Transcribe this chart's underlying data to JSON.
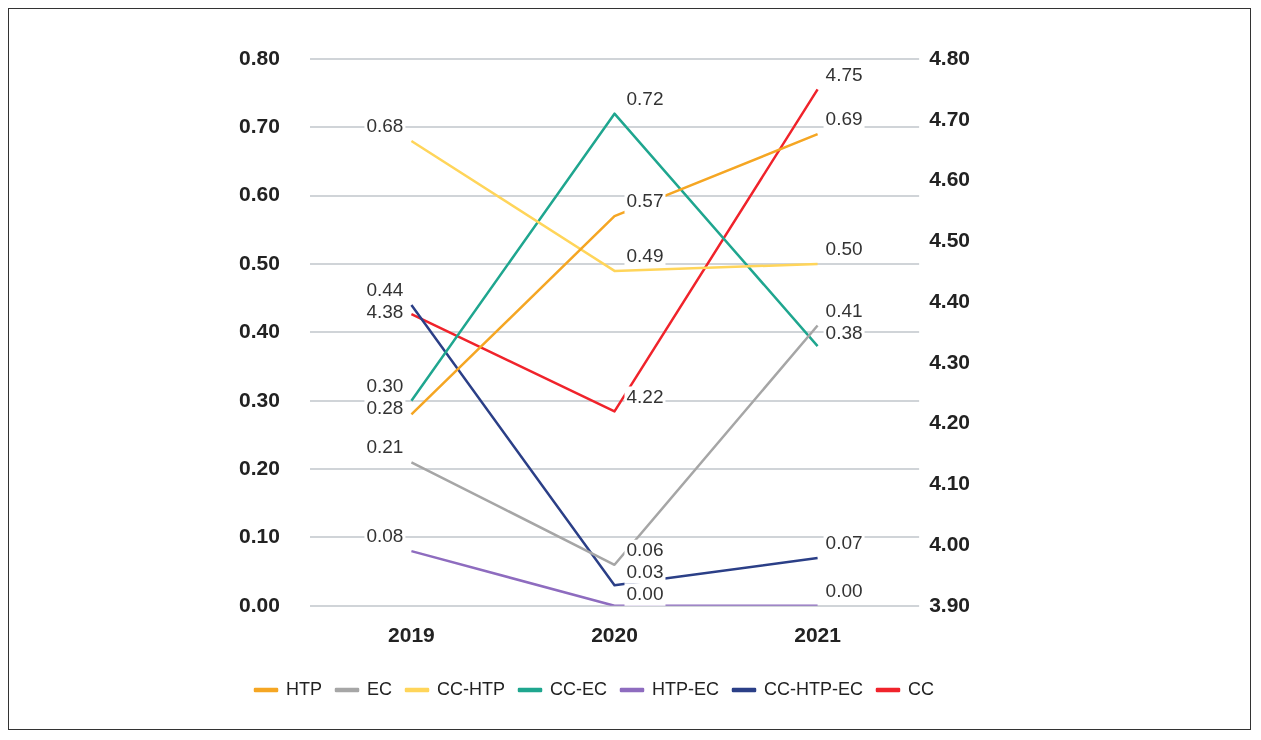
{
  "chart_data": {
    "type": "line",
    "categories": [
      "2019",
      "2020",
      "2021"
    ],
    "series": [
      {
        "name": "HTP",
        "color": "#f5a623",
        "values": [
          0.28,
          0.57,
          0.69
        ],
        "value_labels": [
          "0.28",
          "0.57",
          "0.69"
        ]
      },
      {
        "name": "EC",
        "color": "#a6a6a6",
        "values": [
          0.21,
          0.06,
          0.41
        ],
        "value_labels": [
          "0.21",
          "0.06",
          "0.41"
        ]
      },
      {
        "name": "CC-HTP",
        "color": "#ffd55a",
        "values": [
          0.68,
          0.49,
          0.5
        ],
        "value_labels": [
          "0.68",
          "0.49",
          "0.50"
        ]
      },
      {
        "name": "CC-EC",
        "color": "#1fa68f",
        "values": [
          0.3,
          0.72,
          0.38
        ],
        "value_labels": [
          "0.30",
          "0.72",
          "0.38"
        ]
      },
      {
        "name": "HTP-EC",
        "color": "#8e6cbf",
        "values": [
          0.08,
          0.0,
          0.0
        ],
        "value_labels": [
          "0.08",
          "0.00",
          "0.00"
        ]
      },
      {
        "name": "CC-HTP-EC",
        "color": "#2b3f87",
        "values": [
          0.44,
          0.03,
          0.07
        ],
        "value_labels": [
          "0.44",
          "0.03",
          "0.07"
        ]
      },
      {
        "name": "CC",
        "color": "#f0232b",
        "axis": "y2",
        "values": [
          4.38,
          4.22,
          4.75
        ],
        "value_labels": [
          "4.38",
          "4.22",
          "4.75"
        ]
      }
    ],
    "ylim": [
      0,
      0.8
    ],
    "yticks": [
      {
        "value": 0,
        "label": "0.00"
      },
      {
        "value": 0.1,
        "label": "0.10"
      },
      {
        "value": 0.2,
        "label": "0.20"
      },
      {
        "value": 0.3,
        "label": "0.30"
      },
      {
        "value": 0.4,
        "label": "0.40"
      },
      {
        "value": 0.5,
        "label": "0.50"
      },
      {
        "value": 0.6,
        "label": "0.60"
      },
      {
        "value": 0.7,
        "label": "0.70"
      },
      {
        "value": 0.8,
        "label": "0.80"
      }
    ],
    "y2lim": [
      3.9,
      4.8
    ],
    "y2ticks": [
      {
        "value": 3.9,
        "label": "3.90"
      },
      {
        "value": 4.0,
        "label": "4.00"
      },
      {
        "value": 4.1,
        "label": "4.10"
      },
      {
        "value": 4.2,
        "label": "4.20"
      },
      {
        "value": 4.3,
        "label": "4.30"
      },
      {
        "value": 4.4,
        "label": "4.40"
      },
      {
        "value": 4.5,
        "label": "4.50"
      },
      {
        "value": 4.6,
        "label": "4.60"
      },
      {
        "value": 4.7,
        "label": "4.70"
      },
      {
        "value": 4.8,
        "label": "4.80"
      }
    ],
    "grid": "y",
    "legend": "bottom",
    "marker": "none",
    "line_style": "solid"
  }
}
